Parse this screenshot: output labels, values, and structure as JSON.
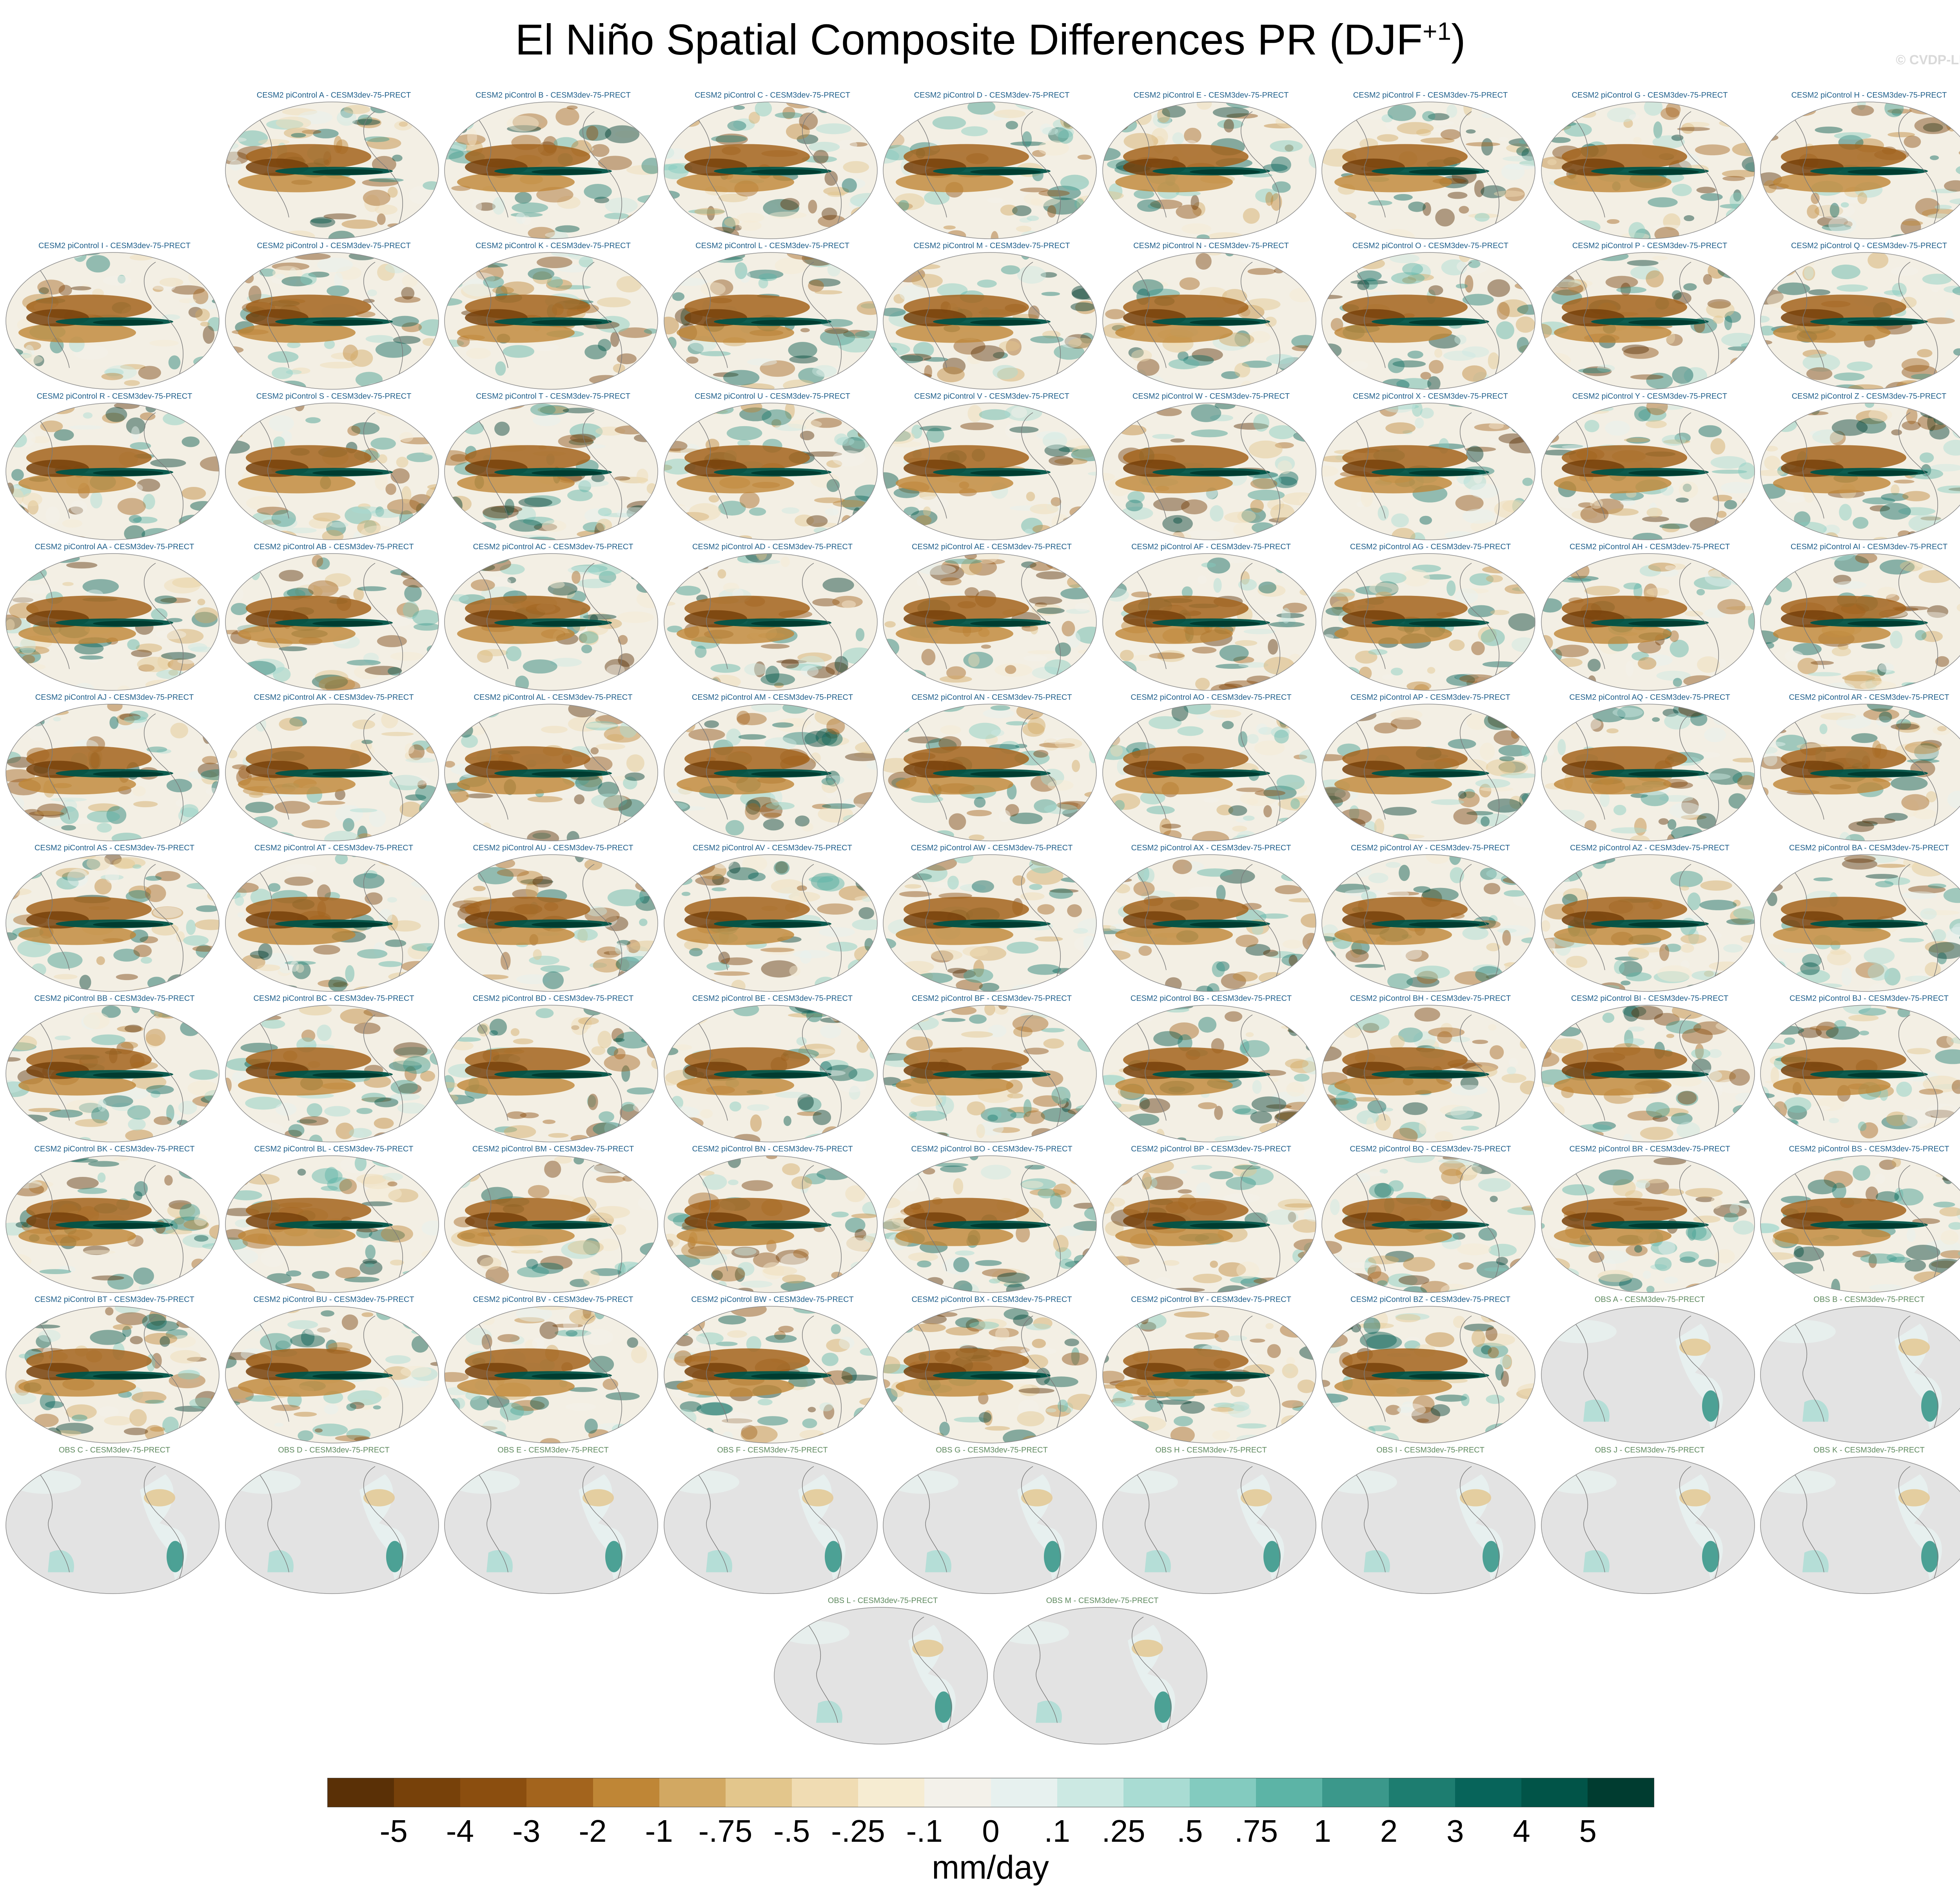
{
  "title": {
    "main": "El Niño Spatial Composite Differences PR (DJF",
    "superscript": "+1",
    "close": ")"
  },
  "watermark": "© CVDP-LE",
  "panels": [
    {
      "label": "CESM2 piControl A - CESM3dev-75-PRECT",
      "kind": "model"
    },
    {
      "label": "CESM2 piControl B - CESM3dev-75-PRECT",
      "kind": "model"
    },
    {
      "label": "CESM2 piControl C - CESM3dev-75-PRECT",
      "kind": "model"
    },
    {
      "label": "CESM2 piControl D - CESM3dev-75-PRECT",
      "kind": "model"
    },
    {
      "label": "CESM2 piControl E - CESM3dev-75-PRECT",
      "kind": "model"
    },
    {
      "label": "CESM2 piControl F - CESM3dev-75-PRECT",
      "kind": "model"
    },
    {
      "label": "CESM2 piControl G - CESM3dev-75-PRECT",
      "kind": "model"
    },
    {
      "label": "CESM2 piControl H - CESM3dev-75-PRECT",
      "kind": "model"
    },
    {
      "label": "CESM2 piControl I - CESM3dev-75-PRECT",
      "kind": "model"
    },
    {
      "label": "CESM2 piControl J - CESM3dev-75-PRECT",
      "kind": "model"
    },
    {
      "label": "CESM2 piControl K - CESM3dev-75-PRECT",
      "kind": "model"
    },
    {
      "label": "CESM2 piControl L - CESM3dev-75-PRECT",
      "kind": "model"
    },
    {
      "label": "CESM2 piControl M - CESM3dev-75-PRECT",
      "kind": "model"
    },
    {
      "label": "CESM2 piControl N - CESM3dev-75-PRECT",
      "kind": "model"
    },
    {
      "label": "CESM2 piControl O - CESM3dev-75-PRECT",
      "kind": "model"
    },
    {
      "label": "CESM2 piControl P - CESM3dev-75-PRECT",
      "kind": "model"
    },
    {
      "label": "CESM2 piControl Q - CESM3dev-75-PRECT",
      "kind": "model"
    },
    {
      "label": "CESM2 piControl R - CESM3dev-75-PRECT",
      "kind": "model"
    },
    {
      "label": "CESM2 piControl S - CESM3dev-75-PRECT",
      "kind": "model"
    },
    {
      "label": "CESM2 piControl T - CESM3dev-75-PRECT",
      "kind": "model"
    },
    {
      "label": "CESM2 piControl U - CESM3dev-75-PRECT",
      "kind": "model"
    },
    {
      "label": "CESM2 piControl V - CESM3dev-75-PRECT",
      "kind": "model"
    },
    {
      "label": "CESM2 piControl W - CESM3dev-75-PRECT",
      "kind": "model"
    },
    {
      "label": "CESM2 piControl X - CESM3dev-75-PRECT",
      "kind": "model"
    },
    {
      "label": "CESM2 piControl Y - CESM3dev-75-PRECT",
      "kind": "model"
    },
    {
      "label": "CESM2 piControl Z - CESM3dev-75-PRECT",
      "kind": "model"
    },
    {
      "label": "CESM2 piControl AA - CESM3dev-75-PRECT",
      "kind": "model"
    },
    {
      "label": "CESM2 piControl AB - CESM3dev-75-PRECT",
      "kind": "model"
    },
    {
      "label": "CESM2 piControl AC - CESM3dev-75-PRECT",
      "kind": "model"
    },
    {
      "label": "CESM2 piControl AD - CESM3dev-75-PRECT",
      "kind": "model"
    },
    {
      "label": "CESM2 piControl AE - CESM3dev-75-PRECT",
      "kind": "model"
    },
    {
      "label": "CESM2 piControl AF - CESM3dev-75-PRECT",
      "kind": "model"
    },
    {
      "label": "CESM2 piControl AG - CESM3dev-75-PRECT",
      "kind": "model"
    },
    {
      "label": "CESM2 piControl AH - CESM3dev-75-PRECT",
      "kind": "model"
    },
    {
      "label": "CESM2 piControl AI - CESM3dev-75-PRECT",
      "kind": "model"
    },
    {
      "label": "CESM2 piControl AJ - CESM3dev-75-PRECT",
      "kind": "model"
    },
    {
      "label": "CESM2 piControl AK - CESM3dev-75-PRECT",
      "kind": "model"
    },
    {
      "label": "CESM2 piControl AL - CESM3dev-75-PRECT",
      "kind": "model"
    },
    {
      "label": "CESM2 piControl AM - CESM3dev-75-PRECT",
      "kind": "model"
    },
    {
      "label": "CESM2 piControl AN - CESM3dev-75-PRECT",
      "kind": "model"
    },
    {
      "label": "CESM2 piControl AO - CESM3dev-75-PRECT",
      "kind": "model"
    },
    {
      "label": "CESM2 piControl AP - CESM3dev-75-PRECT",
      "kind": "model"
    },
    {
      "label": "CESM2 piControl AQ - CESM3dev-75-PRECT",
      "kind": "model"
    },
    {
      "label": "CESM2 piControl AR - CESM3dev-75-PRECT",
      "kind": "model"
    },
    {
      "label": "CESM2 piControl AS - CESM3dev-75-PRECT",
      "kind": "model"
    },
    {
      "label": "CESM2 piControl AT - CESM3dev-75-PRECT",
      "kind": "model"
    },
    {
      "label": "CESM2 piControl AU - CESM3dev-75-PRECT",
      "kind": "model"
    },
    {
      "label": "CESM2 piControl AV - CESM3dev-75-PRECT",
      "kind": "model"
    },
    {
      "label": "CESM2 piControl AW - CESM3dev-75-PRECT",
      "kind": "model"
    },
    {
      "label": "CESM2 piControl AX - CESM3dev-75-PRECT",
      "kind": "model"
    },
    {
      "label": "CESM2 piControl AY - CESM3dev-75-PRECT",
      "kind": "model"
    },
    {
      "label": "CESM2 piControl AZ - CESM3dev-75-PRECT",
      "kind": "model"
    },
    {
      "label": "CESM2 piControl BA - CESM3dev-75-PRECT",
      "kind": "model"
    },
    {
      "label": "CESM2 piControl BB - CESM3dev-75-PRECT",
      "kind": "model"
    },
    {
      "label": "CESM2 piControl BC - CESM3dev-75-PRECT",
      "kind": "model"
    },
    {
      "label": "CESM2 piControl BD - CESM3dev-75-PRECT",
      "kind": "model"
    },
    {
      "label": "CESM2 piControl BE - CESM3dev-75-PRECT",
      "kind": "model"
    },
    {
      "label": "CESM2 piControl BF - CESM3dev-75-PRECT",
      "kind": "model"
    },
    {
      "label": "CESM2 piControl BG - CESM3dev-75-PRECT",
      "kind": "model"
    },
    {
      "label": "CESM2 piControl BH - CESM3dev-75-PRECT",
      "kind": "model"
    },
    {
      "label": "CESM2 piControl BI - CESM3dev-75-PRECT",
      "kind": "model"
    },
    {
      "label": "CESM2 piControl BJ - CESM3dev-75-PRECT",
      "kind": "model"
    },
    {
      "label": "CESM2 piControl BK - CESM3dev-75-PRECT",
      "kind": "model"
    },
    {
      "label": "CESM2 piControl BL - CESM3dev-75-PRECT",
      "kind": "model"
    },
    {
      "label": "CESM2 piControl BM - CESM3dev-75-PRECT",
      "kind": "model"
    },
    {
      "label": "CESM2 piControl BN - CESM3dev-75-PRECT",
      "kind": "model"
    },
    {
      "label": "CESM2 piControl BO - CESM3dev-75-PRECT",
      "kind": "model"
    },
    {
      "label": "CESM2 piControl BP - CESM3dev-75-PRECT",
      "kind": "model"
    },
    {
      "label": "CESM2 piControl BQ - CESM3dev-75-PRECT",
      "kind": "model"
    },
    {
      "label": "CESM2 piControl BR - CESM3dev-75-PRECT",
      "kind": "model"
    },
    {
      "label": "CESM2 piControl BS - CESM3dev-75-PRECT",
      "kind": "model"
    },
    {
      "label": "CESM2 piControl BT - CESM3dev-75-PRECT",
      "kind": "model"
    },
    {
      "label": "CESM2 piControl BU - CESM3dev-75-PRECT",
      "kind": "model"
    },
    {
      "label": "CESM2 piControl BV - CESM3dev-75-PRECT",
      "kind": "model"
    },
    {
      "label": "CESM2 piControl BW - CESM3dev-75-PRECT",
      "kind": "model"
    },
    {
      "label": "CESM2 piControl BX - CESM3dev-75-PRECT",
      "kind": "model"
    },
    {
      "label": "CESM2 piControl BY - CESM3dev-75-PRECT",
      "kind": "model"
    },
    {
      "label": "CESM2 piControl BZ - CESM3dev-75-PRECT",
      "kind": "model"
    },
    {
      "label": "OBS A - CESM3dev-75-PRECT",
      "kind": "obs"
    },
    {
      "label": "OBS B - CESM3dev-75-PRECT",
      "kind": "obs"
    },
    {
      "label": "OBS C - CESM3dev-75-PRECT",
      "kind": "obs"
    },
    {
      "label": "OBS D - CESM3dev-75-PRECT",
      "kind": "obs"
    },
    {
      "label": "OBS E - CESM3dev-75-PRECT",
      "kind": "obs"
    },
    {
      "label": "OBS F - CESM3dev-75-PRECT",
      "kind": "obs"
    },
    {
      "label": "OBS G - CESM3dev-75-PRECT",
      "kind": "obs"
    },
    {
      "label": "OBS H - CESM3dev-75-PRECT",
      "kind": "obs"
    },
    {
      "label": "OBS I - CESM3dev-75-PRECT",
      "kind": "obs"
    },
    {
      "label": "OBS J - CESM3dev-75-PRECT",
      "kind": "obs"
    },
    {
      "label": "OBS K - CESM3dev-75-PRECT",
      "kind": "obs"
    },
    {
      "label": "OBS L - CESM3dev-75-PRECT",
      "kind": "obs"
    },
    {
      "label": "OBS M - CESM3dev-75-PRECT",
      "kind": "obs"
    }
  ],
  "colorbar": {
    "colors": [
      "#5a3006",
      "#77410a",
      "#8b4e0f",
      "#a3641d",
      "#bf8636",
      "#d2a862",
      "#e3c68c",
      "#f0dcb3",
      "#f6ecd2",
      "#f3f1ea",
      "#e7f1ef",
      "#cce9e3",
      "#a9dcd3",
      "#83cbbf",
      "#5cb4a6",
      "#3b988b",
      "#1d7d70",
      "#07645a",
      "#015448",
      "#003c30"
    ],
    "labels": [
      "-5",
      "-4",
      "-3",
      "-2",
      "-1",
      "-.75",
      "-.5",
      "-.25",
      "-.1",
      "0",
      ".1",
      ".25",
      ".5",
      ".75",
      "1",
      "2",
      "3",
      "4",
      "5"
    ],
    "units": "mm/day"
  },
  "map_style": {
    "land_missing_color": "#e3e3e3",
    "ocean_background": "#f3efe4",
    "coast_color": "#7a7a7a"
  }
}
